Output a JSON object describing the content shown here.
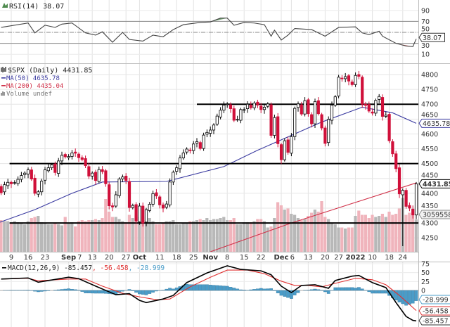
{
  "rsi": {
    "title": "RSI(14) 38.07",
    "last_label": "38.07",
    "levels": [
      70,
      50,
      30
    ],
    "ticks": [
      "90",
      "70",
      "50",
      "30",
      "10"
    ],
    "points": [
      [
        "2021-08-04",
        59
      ],
      [
        "2021-08-16",
        67
      ],
      [
        "2021-08-18",
        49
      ],
      [
        "2021-08-23",
        63
      ],
      [
        "2021-08-26",
        59
      ],
      [
        "2021-08-30",
        65
      ],
      [
        "2021-09-02",
        67
      ],
      [
        "2021-09-09",
        49
      ],
      [
        "2021-09-14",
        45
      ],
      [
        "2021-09-16",
        51
      ],
      [
        "2021-09-21",
        32
      ],
      [
        "2021-09-24",
        50
      ],
      [
        "2021-09-28",
        37
      ],
      [
        "2021-10-04",
        34
      ],
      [
        "2021-10-07",
        45
      ],
      [
        "2021-10-12",
        42
      ],
      [
        "2021-10-15",
        55
      ],
      [
        "2021-10-20",
        64
      ],
      [
        "2021-10-27",
        68
      ],
      [
        "2021-11-01",
        69
      ],
      [
        "2021-11-04",
        76
      ],
      [
        "2021-11-08",
        76
      ],
      [
        "2021-11-10",
        63
      ],
      [
        "2021-11-15",
        68
      ],
      [
        "2021-11-18",
        67
      ],
      [
        "2021-11-23",
        64
      ],
      [
        "2021-11-26",
        43
      ],
      [
        "2021-11-29",
        54
      ],
      [
        "2021-12-01",
        36
      ],
      [
        "2021-12-03",
        45
      ],
      [
        "2021-12-07",
        57
      ],
      [
        "2021-12-14",
        55
      ],
      [
        "2021-12-20",
        43
      ],
      [
        "2021-12-27",
        59
      ],
      [
        "2022-01-03",
        60
      ],
      [
        "2022-01-05",
        49
      ],
      [
        "2022-01-07",
        46
      ],
      [
        "2022-01-12",
        52
      ],
      [
        "2022-01-13",
        43
      ],
      [
        "2022-01-20",
        30
      ],
      [
        "2022-01-25",
        25
      ],
      [
        "2022-01-27",
        24
      ],
      [
        "2022-01-28",
        38.07
      ]
    ],
    "colors": {
      "line": "#444444",
      "overbought_fill": "#4e8a4e",
      "oversold_fill": "#b04040"
    }
  },
  "price": {
    "title": "$SPX (Daily) 4431.85",
    "ma50_label": "MA(50) 4635.78",
    "ma200_label": "MA(200) 4435.04",
    "volume_label": "Volume undef",
    "last_close_label": "4431.85",
    "ma50_last_label": "4635.78",
    "volume_last_label": "3059558",
    "ticks": [
      4800,
      4750,
      4700,
      4650,
      4600,
      4550,
      4500,
      4450,
      4400,
      4350,
      4300,
      4250
    ],
    "support_resistance": [
      {
        "value": 4700,
        "from": "2021-10-26"
      },
      {
        "value": 4500,
        "from": "2021-08-08"
      },
      {
        "value": 4300,
        "from": "2021-08-07"
      }
    ],
    "colors": {
      "up": "#000000",
      "down": "#d0103a",
      "ma50": "#3a3aa0",
      "ma200": "#d03048",
      "vol_up": "#b8b8b8",
      "vol_down": "#f0b4bc"
    },
    "ma50": [
      [
        "2021-08-03",
        4300
      ],
      [
        "2021-08-18",
        4345
      ],
      [
        "2021-09-02",
        4400
      ],
      [
        "2021-09-16",
        4438
      ],
      [
        "2021-10-13",
        4440
      ],
      [
        "2021-11-05",
        4490
      ],
      [
        "2021-11-19",
        4545
      ],
      [
        "2021-12-03",
        4590
      ],
      [
        "2021-12-17",
        4640
      ],
      [
        "2022-01-05",
        4690
      ],
      [
        "2022-01-19",
        4671
      ],
      [
        "2022-01-28",
        4635.78
      ]
    ],
    "ma200": [
      [
        "2021-11-01",
        4200
      ],
      [
        "2021-12-06",
        4300
      ],
      [
        "2022-01-28",
        4435.04
      ]
    ],
    "candles": [
      [
        "2021-08-03",
        4423,
        2.9
      ],
      [
        "2021-08-04",
        4402,
        3.0
      ],
      [
        "2021-08-05",
        4429,
        2.9
      ],
      [
        "2021-08-06",
        4437,
        2.9
      ],
      [
        "2021-08-09",
        4432,
        2.7
      ],
      [
        "2021-08-10",
        4436,
        2.9
      ],
      [
        "2021-08-11",
        4447,
        2.8
      ],
      [
        "2021-08-12",
        4460,
        2.7
      ],
      [
        "2021-08-13",
        4468,
        2.6
      ],
      [
        "2021-08-16",
        4479,
        2.9
      ],
      [
        "2021-08-17",
        4448,
        3.2
      ],
      [
        "2021-08-18",
        4400,
        3.3
      ],
      [
        "2021-08-19",
        4405,
        3.4
      ],
      [
        "2021-08-20",
        4441,
        2.8
      ],
      [
        "2021-08-23",
        4479,
        2.7
      ],
      [
        "2021-08-24",
        4486,
        2.6
      ],
      [
        "2021-08-25",
        4496,
        2.6
      ],
      [
        "2021-08-26",
        4470,
        2.7
      ],
      [
        "2021-08-27",
        4509,
        2.6
      ],
      [
        "2021-08-30",
        4528,
        2.5
      ],
      [
        "2021-08-31",
        4523,
        3.3
      ],
      [
        "2021-09-01",
        4524,
        2.7
      ],
      [
        "2021-09-02",
        4536,
        2.8
      ],
      [
        "2021-09-03",
        4535,
        2.4
      ],
      [
        "2021-09-07",
        4520,
        2.9
      ],
      [
        "2021-09-08",
        4514,
        3.0
      ],
      [
        "2021-09-09",
        4493,
        2.9
      ],
      [
        "2021-09-10",
        4458,
        3.0
      ],
      [
        "2021-09-13",
        4468,
        3.0
      ],
      [
        "2021-09-14",
        4443,
        3.1
      ],
      [
        "2021-09-15",
        4480,
        3.0
      ],
      [
        "2021-09-16",
        4473,
        3.2
      ],
      [
        "2021-09-17",
        4432,
        5.0
      ],
      [
        "2021-09-20",
        4358,
        3.8
      ],
      [
        "2021-09-21",
        4354,
        3.3
      ],
      [
        "2021-09-22",
        4395,
        3.3
      ],
      [
        "2021-09-23",
        4448,
        3.1
      ],
      [
        "2021-09-24",
        4455,
        2.9
      ],
      [
        "2021-09-27",
        4443,
        2.8
      ],
      [
        "2021-09-28",
        4352,
        3.5
      ],
      [
        "2021-09-29",
        4359,
        3.2
      ],
      [
        "2021-09-30",
        4307,
        3.5
      ],
      [
        "2021-10-01",
        4357,
        3.3
      ],
      [
        "2021-10-04",
        4300,
        3.3
      ],
      [
        "2021-10-05",
        4345,
        3.0
      ],
      [
        "2021-10-06",
        4363,
        3.2
      ],
      [
        "2021-10-07",
        4399,
        2.9
      ],
      [
        "2021-10-08",
        4391,
        2.6
      ],
      [
        "2021-10-11",
        4361,
        2.6
      ],
      [
        "2021-10-12",
        4350,
        2.7
      ],
      [
        "2021-10-13",
        4364,
        2.9
      ],
      [
        "2021-10-14",
        4438,
        2.9
      ],
      [
        "2021-10-15",
        4471,
        3.0
      ],
      [
        "2021-10-18",
        4486,
        2.6
      ],
      [
        "2021-10-19",
        4519,
        2.6
      ],
      [
        "2021-10-20",
        4536,
        2.7
      ],
      [
        "2021-10-21",
        4549,
        2.7
      ],
      [
        "2021-10-22",
        4544,
        2.9
      ],
      [
        "2021-10-25",
        4566,
        2.9
      ],
      [
        "2021-10-26",
        4574,
        3.0
      ],
      [
        "2021-10-27",
        4551,
        3.1
      ],
      [
        "2021-10-28",
        4596,
        3.0
      ],
      [
        "2021-10-29",
        4605,
        3.2
      ],
      [
        "2021-11-01",
        4613,
        3.0
      ],
      [
        "2021-11-02",
        4630,
        3.1
      ],
      [
        "2021-11-03",
        4660,
        3.1
      ],
      [
        "2021-11-04",
        4680,
        3.2
      ],
      [
        "2021-11-05",
        4697,
        3.3
      ],
      [
        "2021-11-08",
        4701,
        3.0
      ],
      [
        "2021-11-09",
        4685,
        3.0
      ],
      [
        "2021-11-10",
        4646,
        3.2
      ],
      [
        "2021-11-11",
        4649,
        2.6
      ],
      [
        "2021-11-12",
        4682,
        2.6
      ],
      [
        "2021-11-15",
        4682,
        2.8
      ],
      [
        "2021-11-16",
        4700,
        2.8
      ],
      [
        "2021-11-17",
        4688,
        2.8
      ],
      [
        "2021-11-18",
        4704,
        2.9
      ],
      [
        "2021-11-19",
        4697,
        3.1
      ],
      [
        "2021-11-22",
        4682,
        3.1
      ],
      [
        "2021-11-23",
        4690,
        2.9
      ],
      [
        "2021-11-24",
        4701,
        2.3
      ],
      [
        "2021-11-26",
        4595,
        2.4
      ],
      [
        "2021-11-29",
        4655,
        3.2
      ],
      [
        "2021-11-30",
        4567,
        4.7
      ],
      [
        "2021-12-01",
        4513,
        4.4
      ],
      [
        "2021-12-02",
        4577,
        4.0
      ],
      [
        "2021-12-03",
        4538,
        4.1
      ],
      [
        "2021-12-06",
        4591,
        3.6
      ],
      [
        "2021-12-07",
        4686,
        3.5
      ],
      [
        "2021-12-08",
        4701,
        3.2
      ],
      [
        "2021-12-09",
        4667,
        3.0
      ],
      [
        "2021-12-10",
        4712,
        3.1
      ],
      [
        "2021-12-13",
        4668,
        3.4
      ],
      [
        "2021-12-14",
        4634,
        3.7
      ],
      [
        "2021-12-15",
        4709,
        4.0
      ],
      [
        "2021-12-16",
        4668,
        3.8
      ],
      [
        "2021-12-17",
        4620,
        4.8
      ],
      [
        "2021-12-20",
        4568,
        3.3
      ],
      [
        "2021-12-21",
        4649,
        3.1
      ],
      [
        "2021-12-22",
        4697,
        2.7
      ],
      [
        "2021-12-23",
        4725,
        2.6
      ],
      [
        "2021-12-27",
        4791,
        2.3
      ],
      [
        "2021-12-28",
        4786,
        2.3
      ],
      [
        "2021-12-29",
        4793,
        2.2
      ],
      [
        "2021-12-30",
        4778,
        2.3
      ],
      [
        "2021-12-31",
        4766,
        2.3
      ],
      [
        "2022-01-03",
        4797,
        3.4
      ],
      [
        "2022-01-04",
        4794,
        3.9
      ],
      [
        "2022-01-05",
        4700,
        3.5
      ],
      [
        "2022-01-06",
        4696,
        3.5
      ],
      [
        "2022-01-07",
        4677,
        3.2
      ],
      [
        "2022-01-10",
        4670,
        3.5
      ],
      [
        "2022-01-11",
        4713,
        3.3
      ],
      [
        "2022-01-12",
        4726,
        3.4
      ],
      [
        "2022-01-13",
        4659,
        3.6
      ],
      [
        "2022-01-14",
        4663,
        3.3
      ],
      [
        "2022-01-18",
        4577,
        3.8
      ],
      [
        "2022-01-19",
        4533,
        3.5
      ],
      [
        "2022-01-20",
        4483,
        3.6
      ],
      [
        "2022-01-21",
        4398,
        4.1
      ],
      [
        "2022-01-24",
        4410,
        5.1,
        4222
      ],
      [
        "2022-01-25",
        4356,
        3.5
      ],
      [
        "2022-01-26",
        4350,
        3.7
      ],
      [
        "2022-01-27",
        4327,
        3.5
      ],
      [
        "2022-01-28",
        4432,
        3.06
      ]
    ]
  },
  "x_axis": {
    "labels": [
      {
        "date": "2021-08-09",
        "text": "9"
      },
      {
        "date": "2021-08-16",
        "text": "16"
      },
      {
        "date": "2021-08-23",
        "text": "23"
      },
      {
        "date": "2021-09-01",
        "text": "Sep",
        "bold": true
      },
      {
        "date": "2021-09-07",
        "text": "7"
      },
      {
        "date": "2021-09-13",
        "text": "13"
      },
      {
        "date": "2021-09-20",
        "text": "20"
      },
      {
        "date": "2021-09-27",
        "text": "27"
      },
      {
        "date": "2021-10-01",
        "text": "Oct",
        "bold": true
      },
      {
        "date": "2021-10-11",
        "text": "11"
      },
      {
        "date": "2021-10-18",
        "text": "18"
      },
      {
        "date": "2021-10-25",
        "text": "25"
      },
      {
        "date": "2021-11-01",
        "text": "Nov",
        "bold": true
      },
      {
        "date": "2021-11-08",
        "text": "8"
      },
      {
        "date": "2021-11-15",
        "text": "15"
      },
      {
        "date": "2021-11-22",
        "text": "22"
      },
      {
        "date": "2021-12-01",
        "text": "Dec",
        "bold": true
      },
      {
        "date": "2021-12-06",
        "text": "6"
      },
      {
        "date": "2021-12-13",
        "text": "13"
      },
      {
        "date": "2021-12-20",
        "text": "20"
      },
      {
        "date": "2021-12-27",
        "text": "27"
      },
      {
        "date": "2022-01-03",
        "text": "2022",
        "bold": true
      },
      {
        "date": "2022-01-10",
        "text": "10"
      },
      {
        "date": "2022-01-18",
        "text": "18"
      },
      {
        "date": "2022-01-24",
        "text": "24"
      }
    ]
  },
  "macd": {
    "title": "MACD(12,26,9) -85.457",
    "signal_text": ", -56.458",
    "hist_text": ", -28.999",
    "last_macd_label": "-85.457",
    "last_signal_label": "-56.458",
    "last_hist_label": "-28.999",
    "ticks": [
      75,
      50,
      25,
      0
    ],
    "colors": {
      "macd": "#000000",
      "signal": "#e03030",
      "hist": "#4a9cc8"
    },
    "macd_line": [
      [
        "2021-08-04",
        32
      ],
      [
        "2021-08-16",
        35
      ],
      [
        "2021-08-19",
        23
      ],
      [
        "2021-09-01",
        37
      ],
      [
        "2021-09-07",
        33
      ],
      [
        "2021-09-14",
        12
      ],
      [
        "2021-09-22",
        -12
      ],
      [
        "2021-09-28",
        -9
      ],
      [
        "2021-10-01",
        -28
      ],
      [
        "2021-10-05",
        -34
      ],
      [
        "2021-10-12",
        -24
      ],
      [
        "2021-10-15",
        -14
      ],
      [
        "2021-10-21",
        22
      ],
      [
        "2021-10-29",
        49
      ],
      [
        "2021-11-08",
        69
      ],
      [
        "2021-11-12",
        59
      ],
      [
        "2021-11-22",
        55
      ],
      [
        "2021-11-26",
        44
      ],
      [
        "2021-12-01",
        12
      ],
      [
        "2021-12-06",
        -6
      ],
      [
        "2021-12-09",
        14
      ],
      [
        "2021-12-15",
        16
      ],
      [
        "2021-12-21",
        6
      ],
      [
        "2021-12-23",
        28
      ],
      [
        "2021-12-31",
        40
      ],
      [
        "2022-01-04",
        42
      ],
      [
        "2022-01-10",
        22
      ],
      [
        "2022-01-14",
        8
      ],
      [
        "2022-01-20",
        -34
      ],
      [
        "2022-01-25",
        -73
      ],
      [
        "2022-01-27",
        -84
      ],
      [
        "2022-01-28",
        -85.457
      ]
    ],
    "signal_line": [
      [
        "2021-08-04",
        32
      ],
      [
        "2021-08-16",
        34
      ],
      [
        "2021-08-19",
        27
      ],
      [
        "2021-09-01",
        32
      ],
      [
        "2021-09-09",
        32
      ],
      [
        "2021-09-16",
        12
      ],
      [
        "2021-09-24",
        -8
      ],
      [
        "2021-10-01",
        -18
      ],
      [
        "2021-10-08",
        -26
      ],
      [
        "2021-10-14",
        -24
      ],
      [
        "2021-10-22",
        10
      ],
      [
        "2021-11-01",
        37
      ],
      [
        "2021-11-08",
        57
      ],
      [
        "2021-11-16",
        57
      ],
      [
        "2021-11-23",
        47
      ],
      [
        "2021-12-01",
        26
      ],
      [
        "2021-12-07",
        14
      ],
      [
        "2021-12-13",
        14
      ],
      [
        "2021-12-17",
        10
      ],
      [
        "2021-12-23",
        20
      ],
      [
        "2022-01-03",
        34
      ],
      [
        "2022-01-10",
        30
      ],
      [
        "2022-01-14",
        16
      ],
      [
        "2022-01-21",
        -14
      ],
      [
        "2022-01-28",
        -56.458
      ]
    ]
  }
}
